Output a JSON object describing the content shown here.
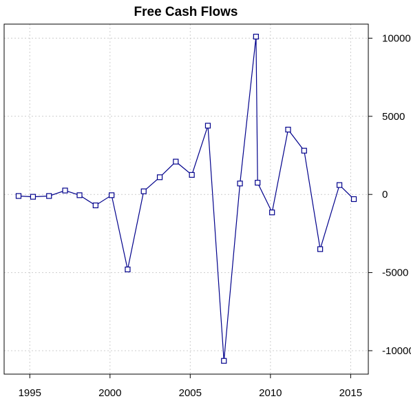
{
  "chart_data": {
    "type": "line",
    "title": "Free Cash Flows",
    "xlabel": "",
    "ylabel": "",
    "xlim": [
      1993.4,
      2016.1
    ],
    "ylim": [
      -11500,
      10900
    ],
    "x_ticks": [
      1995,
      2000,
      2005,
      2010,
      2015
    ],
    "x_tick_labels": [
      "1995",
      "2000",
      "2005",
      "2010",
      "2015"
    ],
    "y_ticks": [
      10000,
      5000,
      0,
      -5000,
      -10000
    ],
    "y_tick_labels": [
      "10000",
      "5000",
      "0",
      "-5000",
      "-10000"
    ],
    "y_axis_side": "right",
    "grid": true,
    "legend": "none",
    "marker": "open-square",
    "colors": {
      "line": "#00008b",
      "marker": "#00008b",
      "grid": "#cccccc"
    },
    "series": [
      {
        "x": [
          1994.3,
          1995.2,
          1996.2,
          1997.2,
          1998.1,
          1999.1,
          2000.1,
          2001.1,
          2002.1,
          2003.1,
          2004.1,
          2005.1,
          2006.1,
          2007.1,
          2008.1,
          2009.1,
          2009.2,
          2010.1,
          2011.1,
          2012.1,
          2013.1,
          2014.3,
          2015.2
        ],
        "y": [
          -100,
          -150,
          -100,
          250,
          -50,
          -700,
          -50,
          -4800,
          200,
          1100,
          2100,
          1250,
          4400,
          -10650,
          700,
          10100,
          750,
          -1150,
          4150,
          2800,
          -3500,
          600,
          -300
        ]
      }
    ]
  }
}
